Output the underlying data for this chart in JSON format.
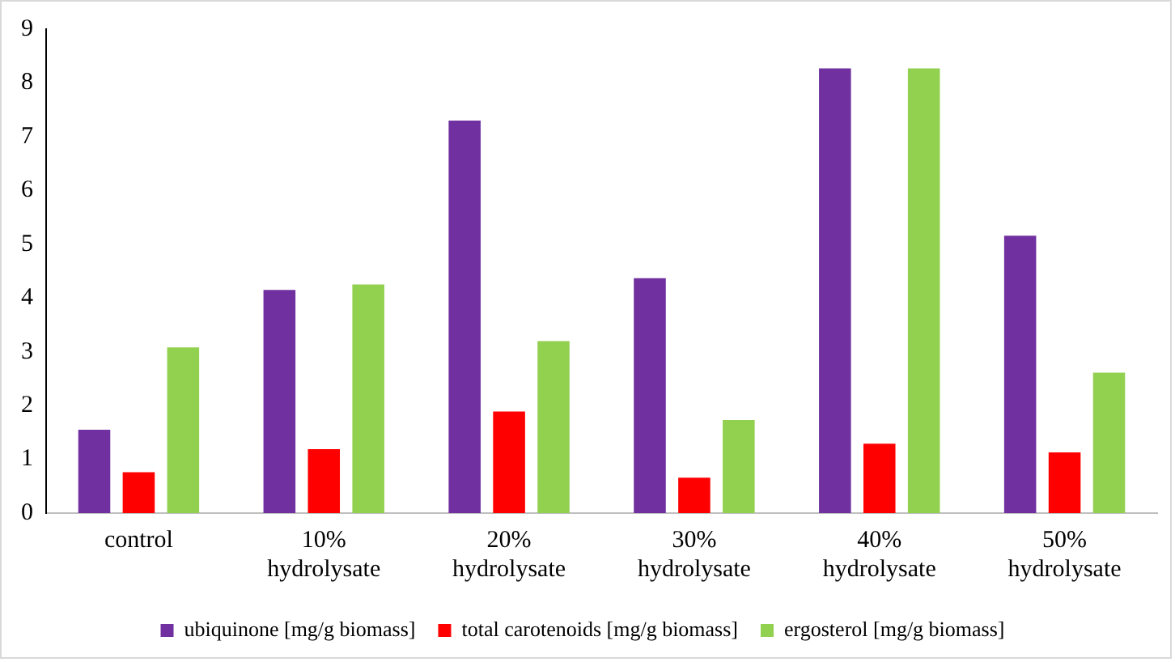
{
  "chart_data": {
    "type": "bar",
    "categories": [
      "control",
      "10%\nhydrolysate",
      "20%\nhydrolysate",
      "30%\nhydrolysate",
      "40%\nhydrolysate",
      "50%\nhydrolysate"
    ],
    "series": [
      {
        "name": "ubiquinone [mg/g biomass]",
        "color": "#7030a0",
        "values": [
          1.55,
          4.15,
          7.3,
          4.37,
          8.27,
          5.16
        ]
      },
      {
        "name": "total carotenoids [mg/g biomass]",
        "color": "#ff0000",
        "values": [
          0.76,
          1.19,
          1.89,
          0.66,
          1.29,
          1.13
        ]
      },
      {
        "name": "ergosterol [mg/g biomass]",
        "color": "#92d050",
        "values": [
          3.08,
          4.25,
          3.2,
          1.73,
          8.27,
          2.61
        ]
      }
    ],
    "ylim": [
      0,
      9
    ],
    "yticks": [
      0,
      1,
      2,
      3,
      4,
      5,
      6,
      7,
      8,
      9
    ],
    "grid": false,
    "legend": "bottom"
  }
}
